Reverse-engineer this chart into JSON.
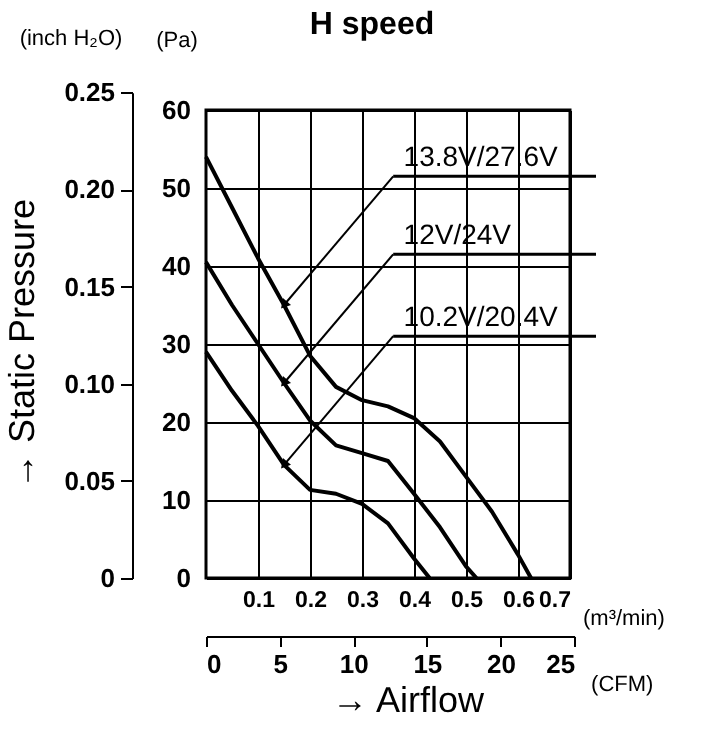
{
  "chart_data": {
    "type": "line",
    "title": "H speed",
    "xlabel": "(m³/min)",
    "ylabel": "(Pa)",
    "y2label": "(inch H₂O)",
    "x2label": "(CFM)",
    "xlim": [
      0,
      0.7
    ],
    "xticks": [
      0.1,
      0.2,
      0.3,
      0.4,
      0.5,
      0.6,
      0.7
    ],
    "ylim": [
      0,
      60
    ],
    "yticks": [
      0,
      10,
      20,
      30,
      40,
      50,
      60
    ],
    "y2lim": [
      0,
      0.25
    ],
    "y2ticks": [
      0,
      0.05,
      {
        "value": 0.1,
        "label": "0.10"
      },
      0.15,
      {
        "value": 0.2,
        "label": "0.20"
      },
      0.25
    ],
    "x2lim": [
      0,
      25
    ],
    "x2ticks": [
      0,
      5,
      10,
      15,
      20,
      25
    ],
    "grid": true,
    "marker": "none",
    "line_style": "solid",
    "series": [
      {
        "name": "13.8V/27.6V",
        "color": "#000000",
        "x": [
          0,
          0.05,
          0.1,
          0.15,
          0.2,
          0.25,
          0.3,
          0.35,
          0.4,
          0.45,
          0.5,
          0.55,
          0.6,
          0.625
        ],
        "values": [
          54,
          47.5,
          41,
          35,
          28.5,
          24.5,
          22.8,
          22,
          20.5,
          17.5,
          13,
          8.5,
          3,
          0
        ]
      },
      {
        "name": "12V/24V",
        "color": "#000000",
        "x": [
          0,
          0.05,
          0.1,
          0.15,
          0.2,
          0.25,
          0.3,
          0.35,
          0.4,
          0.45,
          0.5,
          0.52
        ],
        "values": [
          40.5,
          35,
          30,
          25,
          20.2,
          17,
          16,
          15,
          10.8,
          6.5,
          1.5,
          0
        ]
      },
      {
        "name": "10.2V/20.4V",
        "color": "#000000",
        "x": [
          0,
          0.05,
          0.1,
          0.15,
          0.2,
          0.25,
          0.3,
          0.35,
          0.4,
          0.43
        ],
        "values": [
          29,
          24,
          19.5,
          14.5,
          11.3,
          10.8,
          9.5,
          7,
          2.5,
          0
        ]
      }
    ],
    "annotations": [
      "→ Static Pressure",
      "→ Airflow"
    ]
  }
}
